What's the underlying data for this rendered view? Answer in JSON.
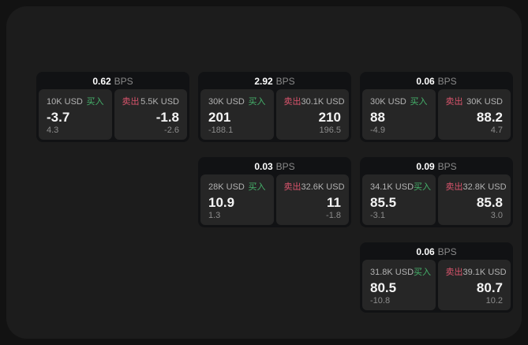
{
  "labels": {
    "buy": "买入",
    "sell": "卖出",
    "bps": "BPS"
  },
  "colors": {
    "buy_accent": "#45b26b",
    "sell_accent": "#d9546c",
    "window_bg": "#1c1c1c",
    "card_bg": "#111214",
    "panel_bg": "#262626"
  },
  "cards": [
    {
      "bps": "0.62",
      "buy": {
        "size": "10K USD",
        "price": "-3.7",
        "delta": "4.3"
      },
      "sell": {
        "size": "5.5K USD",
        "price": "-1.8",
        "delta": "-2.6"
      }
    },
    {
      "bps": "2.92",
      "buy": {
        "size": "30K USD",
        "price": "201",
        "delta": "-188.1"
      },
      "sell": {
        "size": "30.1K USD",
        "price": "210",
        "delta": "196.5"
      }
    },
    {
      "bps": "0.06",
      "buy": {
        "size": "30K USD",
        "price": "88",
        "delta": "-4.9"
      },
      "sell": {
        "size": "30K USD",
        "price": "88.2",
        "delta": "4.7"
      }
    },
    {
      "bps": "0.03",
      "buy": {
        "size": "28K USD",
        "price": "10.9",
        "delta": "1.3"
      },
      "sell": {
        "size": "32.6K USD",
        "price": "11",
        "delta": "-1.8"
      }
    },
    {
      "bps": "0.09",
      "buy": {
        "size": "34.1K USD",
        "price": "85.5",
        "delta": "-3.1"
      },
      "sell": {
        "size": "32.8K USD",
        "price": "85.8",
        "delta": "3.0"
      }
    },
    {
      "bps": "0.06",
      "buy": {
        "size": "31.8K USD",
        "price": "80.5",
        "delta": "-10.8"
      },
      "sell": {
        "size": "39.1K USD",
        "price": "80.7",
        "delta": "10.2"
      }
    }
  ]
}
